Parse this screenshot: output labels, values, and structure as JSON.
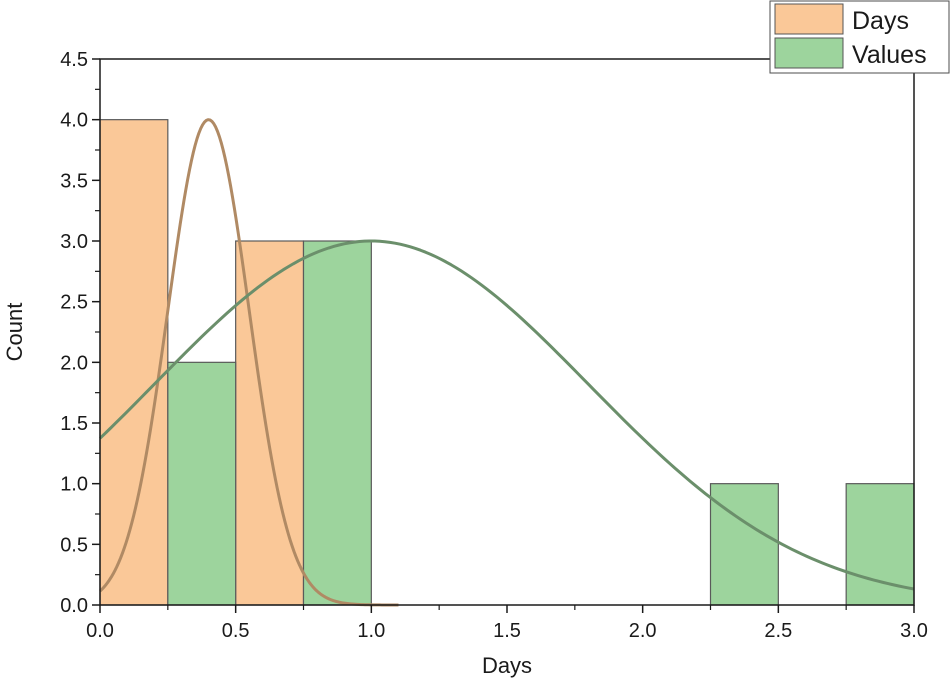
{
  "chart_data": {
    "type": "bar",
    "xlabel": "Days",
    "ylabel": "Count",
    "xlim": [
      0,
      3
    ],
    "ylim": [
      0,
      4.5
    ],
    "xticks": [
      "0.0",
      "0.5",
      "1.0",
      "1.5",
      "2.0",
      "2.5",
      "3.0"
    ],
    "yticks": [
      "0.0",
      "0.5",
      "1.0",
      "1.5",
      "2.0",
      "2.5",
      "3.0",
      "3.5",
      "4.0",
      "4.5"
    ],
    "legend_position": "top-right",
    "grid": false,
    "series": [
      {
        "name": "Days",
        "color": "#fac898",
        "curve_color": "#b08a64",
        "bins": [
          {
            "x0": 0.0,
            "x1": 0.25,
            "count": 4
          },
          {
            "x0": 0.5,
            "x1": 0.75,
            "count": 3
          }
        ],
        "fit_curve": {
          "type": "normal",
          "mean": 0.4,
          "sd": 0.15,
          "peak": 4.0,
          "x_range": [
            0.0,
            1.1
          ]
        }
      },
      {
        "name": "Values",
        "color": "#9dd49d",
        "curve_color": "#6b8f6b",
        "bins": [
          {
            "x0": 0.25,
            "x1": 0.5,
            "count": 2
          },
          {
            "x0": 0.75,
            "x1": 1.0,
            "count": 3
          },
          {
            "x0": 2.25,
            "x1": 2.5,
            "count": 1
          },
          {
            "x0": 2.75,
            "x1": 3.0,
            "count": 1
          }
        ],
        "fit_curve": {
          "type": "normal",
          "mean": 1.0,
          "sd": 0.8,
          "peak": 3.0,
          "x_range": [
            0.0,
            3.0
          ]
        }
      }
    ]
  }
}
